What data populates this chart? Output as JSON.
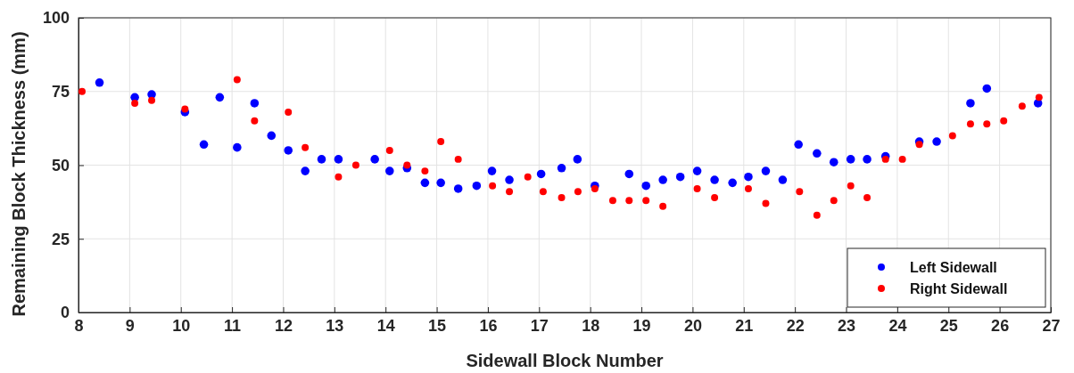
{
  "chart_data": {
    "type": "scatter",
    "xlabel": "Sidewall Block Number",
    "ylabel": "Remaining Block Thickness (mm)",
    "xlim": [
      8,
      27
    ],
    "xticks": [
      8,
      9,
      10,
      11,
      12,
      13,
      14,
      15,
      16,
      17,
      18,
      19,
      20,
      21,
      22,
      23,
      24,
      25,
      26,
      27
    ],
    "ylim": [
      0,
      100
    ],
    "yticks": [
      0,
      25,
      50,
      75,
      100
    ],
    "grid": true,
    "legend": "bottom right",
    "marker": "circle",
    "series": [
      {
        "name": "Left Sidewall",
        "color": "#0000ff",
        "x": [
          8.41,
          9.1,
          9.43,
          10.08,
          10.45,
          10.76,
          11.1,
          11.44,
          11.77,
          12.1,
          12.43,
          12.75,
          13.08,
          13.79,
          14.08,
          14.42,
          14.77,
          15.08,
          15.42,
          15.78,
          16.08,
          16.42,
          17.04,
          17.44,
          17.75,
          18.09,
          18.76,
          19.09,
          19.42,
          19.76,
          20.09,
          20.43,
          20.78,
          21.09,
          21.43,
          21.76,
          22.07,
          22.43,
          22.76,
          23.09,
          23.41,
          23.77,
          24.43,
          24.77,
          25.43,
          25.75,
          26.75
        ],
        "values": [
          78,
          73,
          74,
          68,
          57,
          73,
          56,
          71,
          60,
          55,
          48,
          52,
          52,
          52,
          48,
          49,
          44,
          44,
          42,
          43,
          48,
          45,
          47,
          49,
          52,
          43,
          47,
          43,
          45,
          46,
          48,
          45,
          44,
          46,
          48,
          45,
          57,
          54,
          51,
          52,
          52,
          53,
          58,
          58,
          71,
          76,
          71
        ]
      },
      {
        "name": "Right Sidewall",
        "color": "#ff0000",
        "x": [
          8.07,
          9.1,
          9.43,
          10.08,
          11.1,
          11.44,
          12.1,
          12.43,
          13.08,
          13.42,
          14.08,
          14.42,
          14.77,
          15.08,
          15.42,
          16.09,
          16.42,
          16.78,
          17.08,
          17.44,
          17.76,
          18.09,
          18.44,
          18.76,
          19.09,
          19.42,
          20.09,
          20.43,
          21.09,
          21.43,
          22.09,
          22.43,
          22.76,
          23.09,
          23.41,
          23.77,
          24.1,
          24.43,
          25.08,
          25.43,
          25.75,
          26.08,
          26.44,
          26.77
        ],
        "values": [
          75,
          71,
          72,
          69,
          79,
          65,
          68,
          56,
          46,
          50,
          55,
          50,
          48,
          58,
          52,
          43,
          41,
          46,
          41,
          39,
          41,
          42,
          38,
          38,
          38,
          36,
          42,
          39,
          42,
          37,
          41,
          33,
          38,
          43,
          39,
          52,
          52,
          57,
          60,
          64,
          64,
          65,
          70,
          73
        ]
      }
    ]
  }
}
